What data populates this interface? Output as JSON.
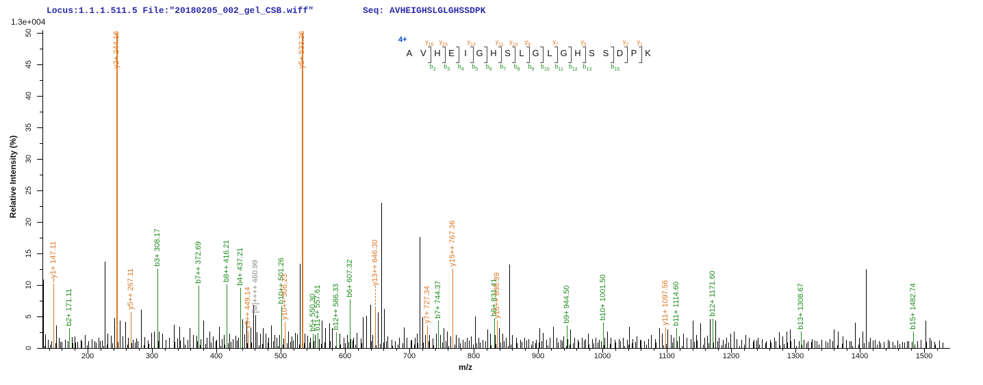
{
  "header": {
    "locus_file": "Locus:1.1.1.511.5 File:\"20180205_002_gel_CSB.wiff\"",
    "seq_label": "Seq: AVHEIGHSLGLGHSSDPK",
    "intensity_scale": "1.3e+004"
  },
  "peptide_panel": {
    "charge": "4+",
    "residues": "AVHEIGHSLGLGHSSDPK",
    "y_ions": [
      {
        "name": "y16",
        "junction": 2
      },
      {
        "name": "y15",
        "junction": 3
      },
      {
        "name": "y13",
        "junction": 5
      },
      {
        "name": "y11",
        "junction": 7
      },
      {
        "name": "y10",
        "junction": 8
      },
      {
        "name": "y9",
        "junction": 9
      },
      {
        "name": "y7",
        "junction": 11
      },
      {
        "name": "y5",
        "junction": 13
      },
      {
        "name": "y2",
        "junction": 16
      },
      {
        "name": "y1",
        "junction": 17
      }
    ],
    "b_ions": [
      {
        "name": "b2",
        "junction": 2
      },
      {
        "name": "b3",
        "junction": 3
      },
      {
        "name": "b4",
        "junction": 4
      },
      {
        "name": "b5",
        "junction": 5
      },
      {
        "name": "b6",
        "junction": 6
      },
      {
        "name": "b7",
        "junction": 7
      },
      {
        "name": "b8",
        "junction": 8
      },
      {
        "name": "b9",
        "junction": 9
      },
      {
        "name": "b10",
        "junction": 10
      },
      {
        "name": "b11",
        "junction": 11
      },
      {
        "name": "b12",
        "junction": 12
      },
      {
        "name": "b13",
        "junction": 13
      },
      {
        "name": "b15",
        "junction": 15
      }
    ]
  },
  "axes": {
    "x_label": "m/z",
    "y_label": "Relative  Intensity (%)",
    "x_range": [
      130,
      1536
    ],
    "y_range": [
      0,
      50
    ],
    "x_major_step": 100,
    "x_minor_step": 20,
    "y_major_step": 5,
    "y_minor_step": 2.5,
    "x_major_ticks": [
      200,
      300,
      400,
      500,
      600,
      700,
      800,
      900,
      1000,
      1100,
      1200,
      1300,
      1400,
      1500
    ],
    "y_major_ticks": [
      0,
      5,
      10,
      15,
      20,
      25,
      30,
      35,
      40,
      45,
      50
    ]
  },
  "colors": {
    "y_ion": "#DC7622",
    "b_ion": "#1E8A1E",
    "precursor_label": "#8C8C8C",
    "peak": "#000000",
    "header_blue": "#2B2BA8",
    "charge_blue": "#0047D6"
  },
  "chart_data": {
    "type": "bar",
    "subtype": "ms2-stick-spectrum",
    "title": "",
    "xlabel": "m/z",
    "ylabel": "Relative  Intensity (%)",
    "xlim": [
      130,
      1536
    ],
    "ylim": [
      0,
      50
    ],
    "base_peak_intensity": "1.3e+004",
    "labeled_peaks": [
      {
        "label": "y1+ 147.11",
        "ion": "y",
        "mz": 147.11,
        "rel_int": 10.2,
        "dash": 8
      },
      {
        "label": "b2+ 171.11",
        "ion": "b",
        "mz": 171.11,
        "rel_int": 3.2
      },
      {
        "label": "y2+ 244.16",
        "ion": "y",
        "mz": 244.16,
        "rel_int": 50,
        "clipped": true
      },
      {
        "label": "y5++ 267.11",
        "ion": "y",
        "mz": 267.11,
        "rel_int": 5.8
      },
      {
        "label": "b3+ 308.17",
        "ion": "b",
        "mz": 308.17,
        "rel_int": 12.6
      },
      {
        "label": "b7++ 372.69",
        "ion": "b",
        "mz": 372.69,
        "rel_int": 9.9
      },
      {
        "label": "b8++ 416.21",
        "ion": "b",
        "mz": 416.21,
        "rel_int": 10.1
      },
      {
        "label": "b4+ 437.21",
        "ion": "b",
        "mz": 437.21,
        "rel_int": 9.6
      },
      {
        "label": "y9++ 449.14",
        "ion": "y",
        "mz": 449.14,
        "rel_int": 2.7
      },
      {
        "label": "[M]++++ 460.99",
        "ion": "M",
        "mz": 460.99,
        "rel_int": 5.2
      },
      {
        "label": "b10++ 501.26",
        "ion": "b",
        "mz": 501.26,
        "rel_int": 6.6
      },
      {
        "label": "y10++ 506.23",
        "ion": "y",
        "mz": 506.23,
        "rel_int": 4.1
      },
      {
        "label": "y5+ 533.26",
        "ion": "y",
        "mz": 533.26,
        "rel_int": 50,
        "clipped": true
      },
      {
        "label": "b5+ 550.30",
        "ion": "b",
        "mz": 550.3,
        "rel_int": 2.3
      },
      {
        "label": "b11++ 557.61",
        "ion": "b",
        "mz": 557.61,
        "rel_int": 2.4
      },
      {
        "label": "b12++ 586.33",
        "ion": "b",
        "mz": 586.33,
        "rel_int": 2.5
      },
      {
        "label": "b6+ 607.32",
        "ion": "b",
        "mz": 607.32,
        "rel_int": 7.7
      },
      {
        "label": "y13++ 646.30",
        "ion": "y",
        "mz": 646.3,
        "rel_int": 6.6,
        "dash": 30
      },
      {
        "label": "y7+ 727.34",
        "ion": "y",
        "mz": 727.34,
        "rel_int": 3.6
      },
      {
        "label": "b7+ 744.37",
        "ion": "b",
        "mz": 744.37,
        "rel_int": 4.3
      },
      {
        "label": "y15++ 767.36",
        "ion": "y",
        "mz": 767.36,
        "rel_int": 12.6
      },
      {
        "label": "b8+ 831.41",
        "ion": "b",
        "mz": 831.41,
        "rel_int": 4.7
      },
      {
        "label": "y16++ 836.39",
        "ion": "y",
        "mz": 836.39,
        "rel_int": 4.3
      },
      {
        "label": "b9+ 944.50",
        "ion": "b",
        "mz": 944.5,
        "rel_int": 3.6
      },
      {
        "label": "b10+ 1001.50",
        "ion": "b",
        "mz": 1001.5,
        "rel_int": 4.0
      },
      {
        "label": "y11+ 1097.56",
        "ion": "y",
        "mz": 1097.56,
        "rel_int": 3.3
      },
      {
        "label": "b11+ 1114.60",
        "ion": "b",
        "mz": 1114.6,
        "rel_int": 3.2
      },
      {
        "label": "b12+ 1171.60",
        "ion": "b",
        "mz": 1171.6,
        "rel_int": 4.7
      },
      {
        "label": "b13+ 1308.67",
        "ion": "b",
        "mz": 1308.67,
        "rel_int": 2.6
      },
      {
        "label": "b15+ 1482.74",
        "ion": "b",
        "mz": 1482.74,
        "rel_int": 2.6
      }
    ],
    "unlabeled_peaks": [
      [
        131,
        10.9
      ],
      [
        134,
        2.2
      ],
      [
        138,
        1.3
      ],
      [
        144,
        1.1
      ],
      [
        151,
        3.6
      ],
      [
        155,
        1.6
      ],
      [
        160,
        1.0
      ],
      [
        165,
        1.3
      ],
      [
        169,
        1.1
      ],
      [
        176,
        1.7
      ],
      [
        180,
        1.9
      ],
      [
        184,
        1.0
      ],
      [
        189,
        1.3
      ],
      [
        196,
        2.1
      ],
      [
        201,
        1.1
      ],
      [
        206,
        1.4
      ],
      [
        211,
        1.1
      ],
      [
        217,
        1.6
      ],
      [
        222,
        1.2
      ],
      [
        227,
        13.7
      ],
      [
        231,
        2.3
      ],
      [
        236,
        2.0
      ],
      [
        241,
        4.8
      ],
      [
        250,
        4.4
      ],
      [
        254,
        1.8
      ],
      [
        258,
        4.1
      ],
      [
        263,
        1.6
      ],
      [
        270,
        1.3
      ],
      [
        275,
        1.5
      ],
      [
        283,
        6.1
      ],
      [
        288,
        1.7
      ],
      [
        294,
        1.2
      ],
      [
        299,
        2.4
      ],
      [
        303,
        2.6
      ],
      [
        311,
        2.6
      ],
      [
        316,
        2.3
      ],
      [
        321,
        1.3
      ],
      [
        327,
        1.6
      ],
      [
        334,
        3.7
      ],
      [
        339,
        1.5
      ],
      [
        343,
        3.4
      ],
      [
        349,
        1.7
      ],
      [
        355,
        1.3
      ],
      [
        359,
        3.1
      ],
      [
        364,
        2.1
      ],
      [
        369,
        2.0
      ],
      [
        376,
        1.4
      ],
      [
        380,
        4.3
      ],
      [
        385,
        1.6
      ],
      [
        389,
        2.6
      ],
      [
        395,
        1.9
      ],
      [
        400,
        1.3
      ],
      [
        404,
        3.4
      ],
      [
        409,
        1.4
      ],
      [
        412,
        2.1
      ],
      [
        420,
        2.3
      ],
      [
        425,
        1.4
      ],
      [
        430,
        2.0
      ],
      [
        434,
        1.6
      ],
      [
        440,
        4.6
      ],
      [
        444,
        2.2
      ],
      [
        447,
        4.4
      ],
      [
        453,
        3.1
      ],
      [
        457,
        6.8
      ],
      [
        463,
        2.5
      ],
      [
        468,
        2.3
      ],
      [
        472,
        3.1
      ],
      [
        477,
        2.3
      ],
      [
        481,
        1.6
      ],
      [
        485,
        3.6
      ],
      [
        490,
        2.1
      ],
      [
        494,
        1.6
      ],
      [
        498,
        2.1
      ],
      [
        504,
        1.5
      ],
      [
        512,
        2.6
      ],
      [
        517,
        1.8
      ],
      [
        522,
        2.4
      ],
      [
        526,
        2.2
      ],
      [
        530,
        13.4
      ],
      [
        537,
        2.3
      ],
      [
        541,
        2.0
      ],
      [
        546,
        1.6
      ],
      [
        553,
        2.1
      ],
      [
        560,
        1.4
      ],
      [
        564,
        4.3
      ],
      [
        569,
        3.2
      ],
      [
        575,
        3.9
      ],
      [
        580,
        3.2
      ],
      [
        586,
        1.5
      ],
      [
        592,
        2.3
      ],
      [
        598,
        1.6
      ],
      [
        603,
        2.1
      ],
      [
        609,
        1.4
      ],
      [
        613,
        1.6
      ],
      [
        618,
        2.4
      ],
      [
        624,
        1.5
      ],
      [
        628,
        4.9
      ],
      [
        633,
        5.1
      ],
      [
        639,
        6.8
      ],
      [
        643,
        2.1
      ],
      [
        651,
        5.6
      ],
      [
        656,
        23.0
      ],
      [
        661,
        6.2
      ],
      [
        666,
        1.9
      ],
      [
        672,
        1.3
      ],
      [
        678,
        1.1
      ],
      [
        684,
        1.6
      ],
      [
        691,
        3.3
      ],
      [
        696,
        1.6
      ],
      [
        703,
        1.3
      ],
      [
        708,
        1.6
      ],
      [
        712,
        2.3
      ],
      [
        716,
        17.6
      ],
      [
        720,
        4.9
      ],
      [
        724,
        2.1
      ],
      [
        731,
        2.1
      ],
      [
        736,
        1.5
      ],
      [
        741,
        2.3
      ],
      [
        748,
        2.1
      ],
      [
        753,
        3.1
      ],
      [
        759,
        2.6
      ],
      [
        764,
        1.8
      ],
      [
        772,
        2.1
      ],
      [
        777,
        1.6
      ],
      [
        783,
        1.3
      ],
      [
        789,
        1.6
      ],
      [
        796,
        1.9
      ],
      [
        802,
        5.0
      ],
      [
        807,
        1.6
      ],
      [
        814,
        1.3
      ],
      [
        821,
        2.9
      ],
      [
        826,
        2.3
      ],
      [
        833,
        2.1
      ],
      [
        839,
        3.1
      ],
      [
        845,
        2.3
      ],
      [
        850,
        1.6
      ],
      [
        855,
        13.3
      ],
      [
        860,
        2.1
      ],
      [
        866,
        1.6
      ],
      [
        872,
        1.3
      ],
      [
        879,
        1.6
      ],
      [
        885,
        1.4
      ],
      [
        891,
        1.1
      ],
      [
        897,
        1.3
      ],
      [
        902,
        3.1
      ],
      [
        907,
        2.4
      ],
      [
        913,
        1.3
      ],
      [
        918,
        1.6
      ],
      [
        923,
        3.4
      ],
      [
        929,
        1.6
      ],
      [
        935,
        1.3
      ],
      [
        939,
        1.9
      ],
      [
        946,
        1.4
      ],
      [
        950,
        2.9
      ],
      [
        956,
        1.6
      ],
      [
        962,
        1.3
      ],
      [
        968,
        1.6
      ],
      [
        973,
        1.4
      ],
      [
        978,
        2.3
      ],
      [
        984,
        1.4
      ],
      [
        989,
        1.6
      ],
      [
        995,
        1.3
      ],
      [
        1003,
        1.6
      ],
      [
        1007,
        2.6
      ],
      [
        1013,
        1.6
      ],
      [
        1019,
        1.3
      ],
      [
        1026,
        1.4
      ],
      [
        1032,
        1.6
      ],
      [
        1038,
        1.3
      ],
      [
        1041,
        3.4
      ],
      [
        1047,
        1.4
      ],
      [
        1053,
        1.9
      ],
      [
        1059,
        1.3
      ],
      [
        1065,
        1.1
      ],
      [
        1071,
        1.4
      ],
      [
        1076,
        2.1
      ],
      [
        1082,
        1.4
      ],
      [
        1088,
        3.1
      ],
      [
        1093,
        2.3
      ],
      [
        1101,
        2.9
      ],
      [
        1106,
        2.1
      ],
      [
        1111,
        1.6
      ],
      [
        1119,
        1.9
      ],
      [
        1125,
        2.3
      ],
      [
        1131,
        1.6
      ],
      [
        1137,
        1.4
      ],
      [
        1140,
        4.4
      ],
      [
        1146,
        2.1
      ],
      [
        1152,
        3.9
      ],
      [
        1158,
        1.6
      ],
      [
        1163,
        2.0
      ],
      [
        1167,
        4.6
      ],
      [
        1175,
        4.4
      ],
      [
        1181,
        1.6
      ],
      [
        1187,
        1.3
      ],
      [
        1193,
        1.6
      ],
      [
        1199,
        2.3
      ],
      [
        1204,
        2.6
      ],
      [
        1209,
        1.4
      ],
      [
        1216,
        1.3
      ],
      [
        1222,
        2.1
      ],
      [
        1228,
        1.6
      ],
      [
        1235,
        1.3
      ],
      [
        1241,
        1.6
      ],
      [
        1248,
        1.4
      ],
      [
        1254,
        1.1
      ],
      [
        1261,
        1.3
      ],
      [
        1267,
        1.6
      ],
      [
        1274,
        2.5
      ],
      [
        1280,
        1.8
      ],
      [
        1286,
        2.6
      ],
      [
        1292,
        2.9
      ],
      [
        1298,
        1.4
      ],
      [
        1305,
        1.1
      ],
      [
        1313,
        1.3
      ],
      [
        1319,
        1.1
      ],
      [
        1326,
        1.4
      ],
      [
        1333,
        1.1
      ],
      [
        1340,
        1.3
      ],
      [
        1347,
        1.1
      ],
      [
        1353,
        1.4
      ],
      [
        1360,
        2.9
      ],
      [
        1366,
        2.6
      ],
      [
        1373,
        1.9
      ],
      [
        1379,
        1.3
      ],
      [
        1386,
        1.1
      ],
      [
        1393,
        4.0
      ],
      [
        1399,
        1.6
      ],
      [
        1404,
        2.6
      ],
      [
        1410,
        12.5
      ],
      [
        1416,
        1.6
      ],
      [
        1423,
        1.3
      ],
      [
        1430,
        1.1
      ],
      [
        1437,
        1.0
      ],
      [
        1444,
        1.3
      ],
      [
        1451,
        1.0
      ],
      [
        1458,
        1.2
      ],
      [
        1466,
        1.0
      ],
      [
        1473,
        1.1
      ],
      [
        1481,
        1.0
      ],
      [
        1489,
        1.1
      ],
      [
        1495,
        1.3
      ],
      [
        1502,
        4.3
      ],
      [
        1509,
        1.6
      ],
      [
        1516,
        1.0
      ],
      [
        1523,
        1.2
      ]
    ]
  }
}
